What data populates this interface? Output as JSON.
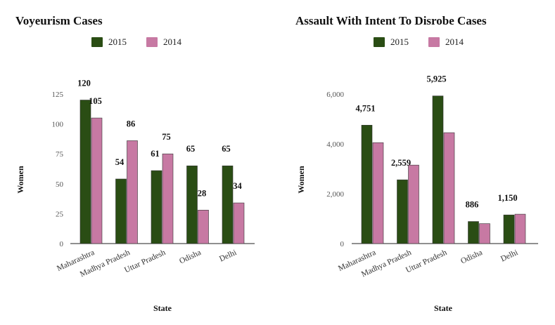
{
  "chart_data": [
    {
      "type": "bar",
      "title": "Voyeurism Cases",
      "xlabel": "State",
      "ylabel": "Women",
      "ylim": [
        0,
        125
      ],
      "yticks": [
        0,
        25,
        50,
        75,
        100,
        125
      ],
      "ytick_labels": [
        "0",
        "25",
        "50",
        "75",
        "100",
        "125"
      ],
      "categories": [
        "Maharashtra",
        "Madhya Pradesh",
        "Uttar Pradesh",
        "Odisha",
        "Delhi"
      ],
      "series": [
        {
          "name": "2015",
          "color": "#2a4d14",
          "values": [
            120,
            54,
            61,
            65,
            65
          ],
          "labels": [
            "120",
            "54",
            "61",
            "65",
            "65"
          ]
        },
        {
          "name": "2014",
          "color": "#c779a3",
          "values": [
            105,
            86,
            75,
            28,
            34
          ],
          "labels": [
            "105",
            "86",
            "75",
            "28",
            "34"
          ]
        }
      ]
    },
    {
      "type": "bar",
      "title": "Assault With Intent To Disrobe Cases",
      "xlabel": "State",
      "ylabel": "Women",
      "ylim": [
        0,
        6000
      ],
      "yticks": [
        0,
        2000,
        4000,
        6000
      ],
      "ytick_labels": [
        "0",
        "2,000",
        "4,000",
        "6,000"
      ],
      "categories": [
        "Maharashtra",
        "Madhya Pradesh",
        "Uttar Pradesh",
        "Odisha",
        "Delhi"
      ],
      "series": [
        {
          "name": "2015",
          "color": "#2a4d14",
          "values": [
            4751,
            2559,
            5925,
            886,
            1150
          ],
          "labels": [
            "4,751",
            "2,559",
            "5,925",
            "886",
            "1,150"
          ]
        },
        {
          "name": "2014",
          "color": "#c779a3",
          "values": [
            4050,
            3150,
            4450,
            800,
            1180
          ],
          "labels": [
            "",
            "",
            "",
            "",
            ""
          ]
        }
      ]
    }
  ]
}
